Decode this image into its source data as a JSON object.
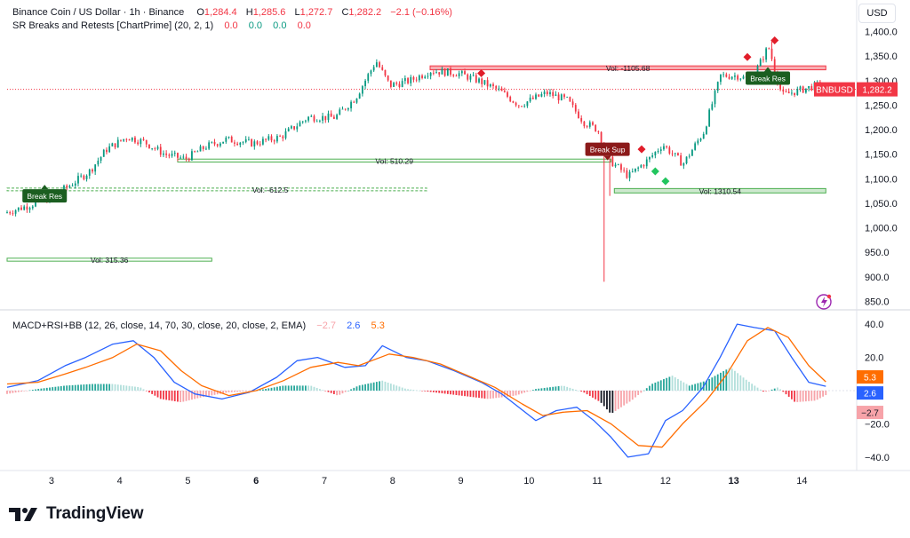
{
  "header": {
    "symbol": "Binance Coin / US Dollar · 1h · Binance",
    "open_label": "O",
    "open": "1,284.4",
    "high_label": "H",
    "high": "1,285.6",
    "low_label": "L",
    "low": "1,272.7",
    "close_label": "C",
    "close": "1,282.2",
    "change": "−2.1 (−0.16%)",
    "indicator1": "SR Breaks and Retests [ChartPrime] (20, 2, 1)",
    "indicator1_values": [
      "0.0",
      "0.0",
      "0.0",
      "0.0"
    ],
    "indicator2": "MACD+RSI+BB (12, 26, close, 14, 70, 30, close, 20, close, 2, EMA)",
    "indicator2_values": [
      "−2.7",
      "2.6",
      "5.3"
    ]
  },
  "currency_button": "USD",
  "brand": "TradingView",
  "colors": {
    "up": "#089981",
    "down": "#f23645",
    "macd_line": "#2962ff",
    "signal_line": "#ff6d00",
    "resistance_fill": "#f7a3a9",
    "support_fill": "#c8e6c9"
  },
  "chart_data": [
    {
      "type": "candlestick",
      "title": "Binance Coin / US Dollar · 1h · Binance",
      "symbol_tag": "BNBUSD",
      "last_price": "1,282.2",
      "y_ticks": [
        "1,400.0",
        "1,350.0",
        "1,300.0",
        "1,250.0",
        "1,200.0",
        "1,150.0",
        "1,100.0",
        "1,050.0",
        "1,000.0",
        "950.0",
        "900.0",
        "850.0"
      ],
      "ylim": [
        840,
        1410
      ],
      "x_ticks": [
        "3",
        "4",
        "5",
        "6",
        "7",
        "8",
        "9",
        "10",
        "11",
        "12",
        "13",
        "14"
      ],
      "x_ticks_bold": [
        "6",
        "13"
      ],
      "xlim": [
        2.35,
        14.75
      ],
      "key_points": [
        [
          2.35,
          1030
        ],
        [
          2.7,
          1045
        ],
        [
          3.0,
          1060
        ],
        [
          3.3,
          1085
        ],
        [
          3.6,
          1115
        ],
        [
          3.85,
          1160
        ],
        [
          4.15,
          1185
        ],
        [
          4.4,
          1175
        ],
        [
          4.7,
          1150
        ],
        [
          5.0,
          1140
        ],
        [
          5.3,
          1165
        ],
        [
          5.6,
          1180
        ],
        [
          6.0,
          1172
        ],
        [
          6.4,
          1185
        ],
        [
          6.8,
          1225
        ],
        [
          7.2,
          1225
        ],
        [
          7.5,
          1265
        ],
        [
          7.8,
          1340
        ],
        [
          8.0,
          1290
        ],
        [
          8.3,
          1300
        ],
        [
          8.6,
          1320
        ],
        [
          9.0,
          1315
        ],
        [
          9.3,
          1300
        ],
        [
          9.6,
          1280
        ],
        [
          9.9,
          1250
        ],
        [
          10.3,
          1275
        ],
        [
          10.6,
          1260
        ],
        [
          10.85,
          1215
        ],
        [
          11.05,
          1200
        ],
        [
          11.2,
          1140
        ],
        [
          11.5,
          1105
        ],
        [
          11.8,
          1140
        ],
        [
          12.0,
          1170
        ],
        [
          12.3,
          1130
        ],
        [
          12.6,
          1195
        ],
        [
          12.85,
          1310
        ],
        [
          13.1,
          1310
        ],
        [
          13.3,
          1300
        ],
        [
          13.55,
          1370
        ],
        [
          13.75,
          1270
        ],
        [
          14.0,
          1280
        ],
        [
          14.3,
          1292
        ],
        [
          14.35,
          1282
        ]
      ],
      "spikes": [
        {
          "x": 11.12,
          "low": 890
        },
        {
          "x": 11.2,
          "low": 1065
        },
        {
          "x": 13.55,
          "high": 1380
        }
      ],
      "zones": [
        {
          "kind": "resistance",
          "label": "Vol: -1105.68",
          "x_from": 8.55,
          "x_to": 14.35,
          "y_top": 1330,
          "y_bottom": 1322
        },
        {
          "kind": "support",
          "label": "Vol: 1310.54",
          "x_from": 11.25,
          "x_to": 14.35,
          "y_top": 1080,
          "y_bottom": 1071
        },
        {
          "kind": "support_line",
          "label": "Vol: 510.29",
          "x_from": 4.85,
          "x_to": 11.2,
          "y_top": 1140,
          "y_bottom": 1134
        },
        {
          "kind": "support_dashed",
          "label": "Vol: -612.5",
          "x_from": 2.35,
          "x_to": 8.5,
          "y_top": 1081,
          "y_bottom": 1078
        },
        {
          "kind": "support_line",
          "label": "Vol: 315.36",
          "x_from": 2.35,
          "x_to": 5.35,
          "y_top": 938,
          "y_bottom": 932
        }
      ],
      "labels": [
        {
          "text": "Break Res",
          "x": 2.9,
          "y": 1065,
          "kind": "up"
        },
        {
          "text": "Break Sup",
          "x": 11.15,
          "y": 1160,
          "kind": "down"
        },
        {
          "text": "Break Res",
          "x": 13.5,
          "y": 1305,
          "kind": "up"
        }
      ],
      "markers": [
        {
          "x": 9.3,
          "y": 1315,
          "kind": "down"
        },
        {
          "x": 11.65,
          "y": 1160,
          "kind": "down"
        },
        {
          "x": 11.85,
          "y": 1115,
          "kind": "up"
        },
        {
          "x": 12.0,
          "y": 1095,
          "kind": "up"
        },
        {
          "x": 13.2,
          "y": 1348,
          "kind": "down"
        },
        {
          "x": 13.6,
          "y": 1382,
          "kind": "down"
        }
      ],
      "price_line": 1282.2
    },
    {
      "type": "line",
      "title": "MACD+RSI+BB",
      "y_ticks": [
        "40.0",
        "20.0",
        "−20.0",
        "−40.0"
      ],
      "ylim": [
        -47,
        47
      ],
      "value_tags": [
        "5.3",
        "2.6",
        "−2.7"
      ],
      "series": [
        {
          "role": "macd",
          "points": [
            [
              2.35,
              2
            ],
            [
              2.8,
              6
            ],
            [
              3.2,
              15
            ],
            [
              3.5,
              20
            ],
            [
              3.9,
              28
            ],
            [
              4.2,
              30
            ],
            [
              4.5,
              20
            ],
            [
              4.8,
              5
            ],
            [
              5.1,
              -2
            ],
            [
              5.5,
              -5
            ],
            [
              5.9,
              -1
            ],
            [
              6.3,
              8
            ],
            [
              6.6,
              18
            ],
            [
              6.9,
              20
            ],
            [
              7.3,
              14
            ],
            [
              7.6,
              15
            ],
            [
              7.85,
              27
            ],
            [
              8.2,
              20
            ],
            [
              8.5,
              18
            ],
            [
              8.9,
              12
            ],
            [
              9.3,
              5
            ],
            [
              9.6,
              -2
            ],
            [
              9.85,
              -10
            ],
            [
              10.1,
              -18
            ],
            [
              10.4,
              -12
            ],
            [
              10.7,
              -10
            ],
            [
              10.95,
              -18
            ],
            [
              11.2,
              -28
            ],
            [
              11.45,
              -40
            ],
            [
              11.75,
              -38
            ],
            [
              12.0,
              -18
            ],
            [
              12.25,
              -12
            ],
            [
              12.55,
              2
            ],
            [
              12.8,
              20
            ],
            [
              13.05,
              40
            ],
            [
              13.3,
              38
            ],
            [
              13.6,
              36
            ],
            [
              13.85,
              20
            ],
            [
              14.1,
              5
            ],
            [
              14.35,
              2.6
            ]
          ]
        },
        {
          "role": "signal",
          "points": [
            [
              2.35,
              4
            ],
            [
              2.8,
              5
            ],
            [
              3.2,
              10
            ],
            [
              3.5,
              14
            ],
            [
              3.9,
              20
            ],
            [
              4.25,
              28
            ],
            [
              4.6,
              24
            ],
            [
              4.9,
              12
            ],
            [
              5.2,
              3
            ],
            [
              5.6,
              -3
            ],
            [
              6.0,
              0
            ],
            [
              6.4,
              6
            ],
            [
              6.8,
              14
            ],
            [
              7.2,
              17
            ],
            [
              7.5,
              15
            ],
            [
              7.95,
              22
            ],
            [
              8.3,
              20
            ],
            [
              8.7,
              16
            ],
            [
              9.1,
              9
            ],
            [
              9.5,
              2
            ],
            [
              9.9,
              -8
            ],
            [
              10.2,
              -15
            ],
            [
              10.5,
              -13
            ],
            [
              10.85,
              -12
            ],
            [
              11.2,
              -20
            ],
            [
              11.6,
              -33
            ],
            [
              11.95,
              -34
            ],
            [
              12.25,
              -20
            ],
            [
              12.6,
              -6
            ],
            [
              12.9,
              10
            ],
            [
              13.2,
              30
            ],
            [
              13.5,
              38
            ],
            [
              13.8,
              32
            ],
            [
              14.1,
              15
            ],
            [
              14.35,
              5.3
            ]
          ]
        },
        {
          "role": "histogram",
          "points": [
            [
              2.35,
              -2
            ],
            [
              2.8,
              1
            ],
            [
              3.2,
              3
            ],
            [
              3.6,
              4
            ],
            [
              3.9,
              4
            ],
            [
              4.3,
              2
            ],
            [
              4.6,
              -5
            ],
            [
              4.9,
              -7
            ],
            [
              5.2,
              -4
            ],
            [
              5.6,
              -1
            ],
            [
              6.0,
              0
            ],
            [
              6.4,
              3
            ],
            [
              6.8,
              3
            ],
            [
              7.2,
              -3
            ],
            [
              7.5,
              3
            ],
            [
              7.85,
              6
            ],
            [
              8.2,
              1
            ],
            [
              8.6,
              -1
            ],
            [
              9.0,
              -3
            ],
            [
              9.4,
              -5
            ],
            [
              9.8,
              -3
            ],
            [
              10.1,
              1
            ],
            [
              10.5,
              3
            ],
            [
              10.8,
              -1
            ],
            [
              11.05,
              -7
            ],
            [
              11.2,
              -14
            ],
            [
              11.5,
              -6
            ],
            [
              11.8,
              4
            ],
            [
              12.1,
              9
            ],
            [
              12.35,
              3
            ],
            [
              12.6,
              6
            ],
            [
              12.95,
              14
            ],
            [
              13.2,
              6
            ],
            [
              13.45,
              -1
            ],
            [
              13.65,
              2
            ],
            [
              13.9,
              -7
            ],
            [
              14.2,
              -6
            ],
            [
              14.35,
              -2.7
            ]
          ]
        }
      ]
    }
  ]
}
